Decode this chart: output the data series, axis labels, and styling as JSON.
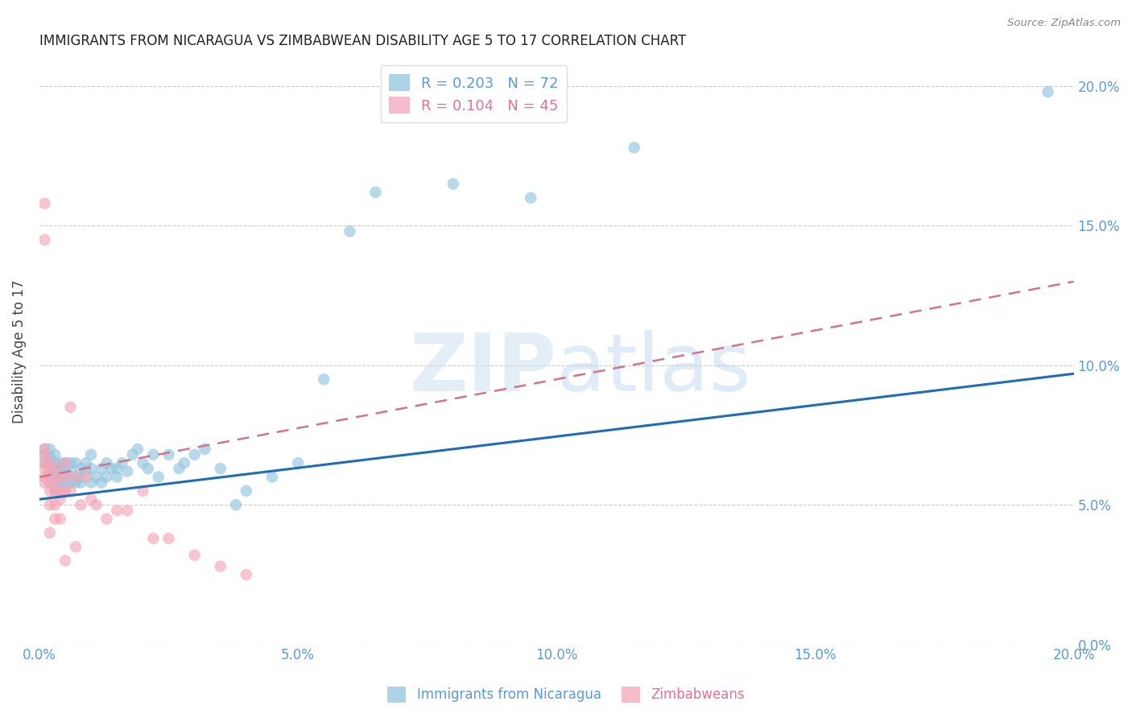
{
  "title": "IMMIGRANTS FROM NICARAGUA VS ZIMBABWEAN DISABILITY AGE 5 TO 17 CORRELATION CHART",
  "source": "Source: ZipAtlas.com",
  "ylabel": "Disability Age 5 to 17",
  "xlim": [
    0.0,
    0.2
  ],
  "ylim": [
    0.0,
    0.21
  ],
  "yticks": [
    0.0,
    0.05,
    0.1,
    0.15,
    0.2
  ],
  "xticks": [
    0.0,
    0.05,
    0.1,
    0.15,
    0.2
  ],
  "ytick_labels": [
    "0.0%",
    "5.0%",
    "10.0%",
    "15.0%",
    "20.0%"
  ],
  "xtick_labels": [
    "0.0%",
    "5.0%",
    "10.0%",
    "15.0%",
    "20.0%"
  ],
  "legend_blue_R": "0.203",
  "legend_blue_N": "72",
  "legend_pink_R": "0.104",
  "legend_pink_N": "45",
  "legend_label_blue": "Immigrants from Nicaragua",
  "legend_label_pink": "Zimbabweans",
  "blue_color": "#92c5de",
  "pink_color": "#f4a6b8",
  "blue_line_color": "#1f6db5",
  "pink_line_color": "#d4748a",
  "tick_color": "#5b9bd5",
  "blue_scatter_x": [
    0.001,
    0.001,
    0.001,
    0.002,
    0.002,
    0.002,
    0.002,
    0.002,
    0.002,
    0.003,
    0.003,
    0.003,
    0.003,
    0.003,
    0.003,
    0.004,
    0.004,
    0.004,
    0.004,
    0.004,
    0.005,
    0.005,
    0.005,
    0.005,
    0.005,
    0.006,
    0.006,
    0.006,
    0.007,
    0.007,
    0.007,
    0.008,
    0.008,
    0.008,
    0.009,
    0.009,
    0.01,
    0.01,
    0.01,
    0.011,
    0.012,
    0.012,
    0.013,
    0.013,
    0.014,
    0.015,
    0.015,
    0.016,
    0.017,
    0.018,
    0.019,
    0.02,
    0.021,
    0.022,
    0.023,
    0.025,
    0.027,
    0.028,
    0.03,
    0.032,
    0.035,
    0.038,
    0.04,
    0.045,
    0.05,
    0.055,
    0.06,
    0.065,
    0.08,
    0.095,
    0.115,
    0.195
  ],
  "blue_scatter_y": [
    0.065,
    0.07,
    0.068,
    0.063,
    0.067,
    0.065,
    0.06,
    0.058,
    0.07,
    0.065,
    0.062,
    0.06,
    0.058,
    0.055,
    0.068,
    0.063,
    0.06,
    0.058,
    0.055,
    0.065,
    0.065,
    0.062,
    0.058,
    0.055,
    0.06,
    0.065,
    0.058,
    0.062,
    0.06,
    0.058,
    0.065,
    0.063,
    0.06,
    0.058,
    0.065,
    0.062,
    0.068,
    0.063,
    0.058,
    0.06,
    0.063,
    0.058,
    0.065,
    0.06,
    0.063,
    0.06,
    0.063,
    0.065,
    0.062,
    0.068,
    0.07,
    0.065,
    0.063,
    0.068,
    0.06,
    0.068,
    0.063,
    0.065,
    0.068,
    0.07,
    0.063,
    0.05,
    0.055,
    0.06,
    0.065,
    0.095,
    0.148,
    0.162,
    0.165,
    0.16,
    0.178,
    0.198
  ],
  "pink_scatter_x": [
    0.001,
    0.001,
    0.001,
    0.001,
    0.001,
    0.001,
    0.001,
    0.002,
    0.002,
    0.002,
    0.002,
    0.002,
    0.002,
    0.002,
    0.003,
    0.003,
    0.003,
    0.003,
    0.003,
    0.004,
    0.004,
    0.004,
    0.004,
    0.005,
    0.005,
    0.005,
    0.005,
    0.006,
    0.006,
    0.007,
    0.007,
    0.008,
    0.009,
    0.01,
    0.011,
    0.013,
    0.015,
    0.017,
    0.02,
    0.022,
    0.025,
    0.03,
    0.035,
    0.04,
    0.001
  ],
  "pink_scatter_y": [
    0.065,
    0.068,
    0.07,
    0.063,
    0.06,
    0.058,
    0.145,
    0.062,
    0.06,
    0.065,
    0.058,
    0.055,
    0.05,
    0.04,
    0.063,
    0.058,
    0.055,
    0.05,
    0.045,
    0.06,
    0.055,
    0.052,
    0.045,
    0.065,
    0.06,
    0.055,
    0.03,
    0.085,
    0.055,
    0.06,
    0.035,
    0.05,
    0.06,
    0.052,
    0.05,
    0.045,
    0.048,
    0.048,
    0.055,
    0.038,
    0.038,
    0.032,
    0.028,
    0.025,
    0.158
  ],
  "blue_trendline_x": [
    0.0,
    0.2
  ],
  "blue_trendline_y": [
    0.052,
    0.097
  ],
  "pink_trendline_x": [
    0.0,
    0.2
  ],
  "pink_trendline_y": [
    0.06,
    0.13
  ]
}
